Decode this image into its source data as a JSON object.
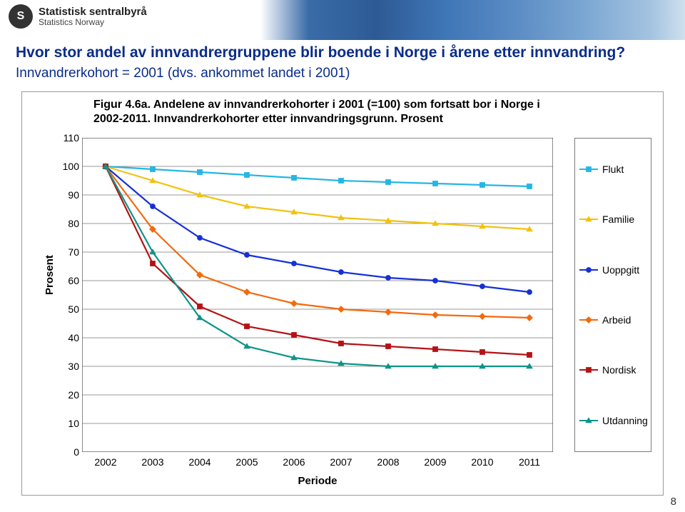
{
  "banner": {
    "org_line1": "Statistisk sentralbyrå",
    "org_line2": "Statistics Norway",
    "logo_glyph": "S"
  },
  "title_line1": "Hvor stor andel av innvandrergruppene blir boende i Norge i årene etter innvandring?",
  "title_line2": "Innvandrerkohort = 2001 (dvs. ankommet landet i 2001)",
  "page_number": "8",
  "chart": {
    "title": "Figur 4.6a. Andelene av innvandrerkohorter i 2001 (=100) som fortsatt bor i Norge i 2002-2011. Innvandrerkohorter etter innvandringsgrunn. Prosent",
    "type": "line",
    "xlabel": "Periode",
    "ylabel": "Prosent",
    "categories": [
      "2002",
      "2003",
      "2004",
      "2005",
      "2006",
      "2007",
      "2008",
      "2009",
      "2010",
      "2011"
    ],
    "ylim": [
      0,
      110
    ],
    "ytick_step": 10,
    "grid_color": "#777777",
    "border_color": "#555555",
    "background_color": "#ffffff",
    "line_width": 2.2,
    "marker_size": 7,
    "label_fontsize": 15,
    "title_fontsize": 16,
    "tick_fontsize": 14,
    "series": [
      {
        "name": "Flukt",
        "color": "#24b6e5",
        "marker": "square",
        "values": [
          100,
          99,
          98,
          97,
          96,
          95,
          94.5,
          94,
          93.5,
          93
        ]
      },
      {
        "name": "Familie",
        "color": "#f2c20f",
        "marker": "triangle",
        "values": [
          100,
          95,
          90,
          86,
          84,
          82,
          81,
          80,
          79,
          78
        ]
      },
      {
        "name": "Uoppgitt",
        "color": "#1530d6",
        "marker": "circle",
        "values": [
          100,
          86,
          75,
          69,
          66,
          63,
          61,
          60,
          58,
          56
        ]
      },
      {
        "name": "Arbeid",
        "color": "#f26a0e",
        "marker": "diamond",
        "values": [
          100,
          78,
          62,
          56,
          52,
          50,
          49,
          48,
          47.5,
          47
        ]
      },
      {
        "name": "Nordisk",
        "color": "#b51215",
        "marker": "square",
        "values": [
          100,
          66,
          51,
          44,
          41,
          38,
          37,
          36,
          35,
          34
        ]
      },
      {
        "name": "Utdanning",
        "color": "#0e9488",
        "marker": "triangle",
        "values": [
          100,
          70,
          47,
          37,
          33,
          31,
          30,
          30,
          30,
          30
        ]
      }
    ]
  }
}
